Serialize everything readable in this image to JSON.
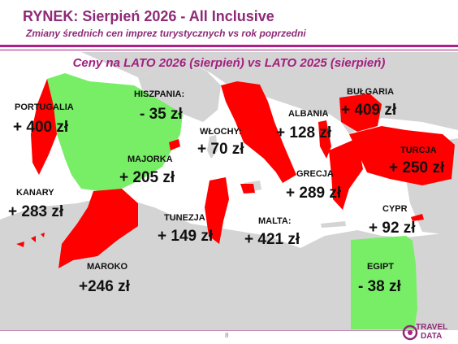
{
  "header": {
    "title": "RYNEK: Sierpień 2026 - All Inclusive",
    "subtitle": "Zmiany średnich cen imprez turystycznych vs rok poprzedni"
  },
  "heading": "Ceny na LATO 2026 (sierpień) vs  LATO 2025 (sierpień)",
  "colors": {
    "accent": "#a2207e",
    "increase": "#ff0000",
    "decrease": "#77ee66",
    "sea": "#ffffff",
    "land": "#d4d4d4"
  },
  "destinations": [
    {
      "id": "portugalia",
      "name": "PORTUGALIA",
      "change": "+ 400 zł",
      "trend": "up"
    },
    {
      "id": "hiszpania",
      "name": "HISZPANIA:",
      "change": "- 35 zł",
      "trend": "down"
    },
    {
      "id": "wlochy",
      "name": "WŁOCHY:",
      "change": "+ 70 zł",
      "trend": "up"
    },
    {
      "id": "albania",
      "name": "ALBANIA",
      "change": "+ 128 zł",
      "trend": "up"
    },
    {
      "id": "bulgaria",
      "name": "BUŁGARIA",
      "change": "+ 409 zł",
      "trend": "up"
    },
    {
      "id": "turcja",
      "name": "TURCJA",
      "change": "+ 250 zł",
      "trend": "up"
    },
    {
      "id": "majorka",
      "name": "MAJORKA",
      "change": "+ 205 zł",
      "trend": "up"
    },
    {
      "id": "grecja",
      "name": "GRECJA",
      "change": "+ 289 zł",
      "trend": "up"
    },
    {
      "id": "kanary",
      "name": "KANARY",
      "change": "+ 283 zł",
      "trend": "up"
    },
    {
      "id": "tunezja",
      "name": "TUNEZJA",
      "change": "+ 149 zł",
      "trend": "up"
    },
    {
      "id": "malta",
      "name": "MALTA:",
      "change": "+ 421 zł",
      "trend": "up"
    },
    {
      "id": "cypr",
      "name": "CYPR",
      "change": "+ 92 zł",
      "trend": "up"
    },
    {
      "id": "maroko",
      "name": "MAROKO",
      "change": "+246 zł",
      "trend": "up"
    },
    {
      "id": "egipt",
      "name": "EGIPT",
      "change": "- 38 zł",
      "trend": "down"
    }
  ],
  "footer": {
    "page_number": "8",
    "logo_line1": "TRAVEL",
    "logo_line2": "DATA"
  }
}
